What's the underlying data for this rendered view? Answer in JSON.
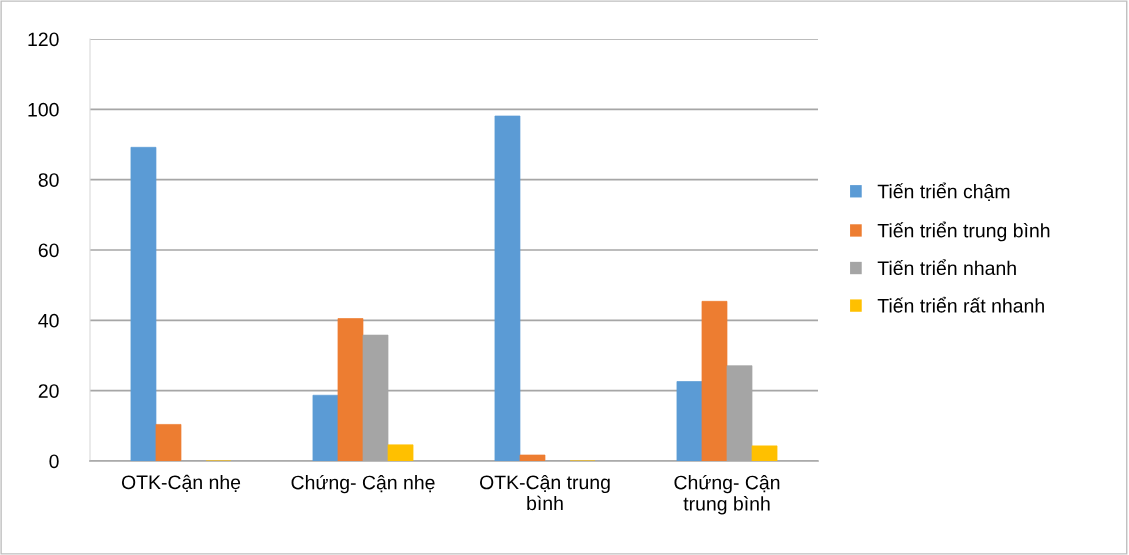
{
  "chart_data": {
    "type": "bar",
    "categories": [
      "OTK-Cận nhẹ",
      "Chứng- Cận nhẹ",
      "OTK-Cận trung\nbình",
      "Chứng- Cận\ntrung bình"
    ],
    "series": [
      {
        "name": "Tiến triển chậm",
        "color": "#5b9bd5",
        "values": [
          89.2,
          18.7,
          98.1,
          22.6
        ]
      },
      {
        "name": "Tiến triển trung bình",
        "color": "#ed7d31",
        "values": [
          10.4,
          40.5,
          1.7,
          45.4
        ]
      },
      {
        "name": "Tiến triển nhanh",
        "color": "#a5a5a5",
        "values": [
          0,
          35.8,
          0,
          27.1
        ]
      },
      {
        "name": "Tiến triển rất nhanh",
        "color": "#ffc000",
        "values": [
          0,
          4.6,
          0,
          4.3
        ]
      }
    ],
    "ylim": [
      0,
      120
    ],
    "yticks": [
      0,
      20,
      40,
      60,
      80,
      100,
      120
    ],
    "grid": "y",
    "legend": "right"
  }
}
